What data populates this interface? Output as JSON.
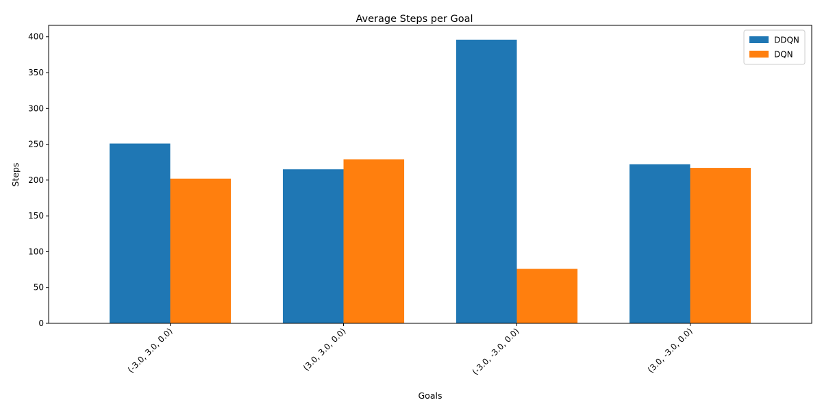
{
  "chart_data": {
    "type": "bar",
    "title": "Average Steps per Goal",
    "xlabel": "Goals",
    "ylabel": "Steps",
    "categories": [
      "(-3.0, 3.0, 0.0)",
      "(3.0, 3.0, 0.0)",
      "(-3.0, -3.0, 0.0)",
      "(3.0, -3.0, 0.0)"
    ],
    "series": [
      {
        "name": "DDQN",
        "color": "#1f77b4",
        "values": [
          251,
          215,
          396,
          222
        ]
      },
      {
        "name": "DQN",
        "color": "#ff7f0e",
        "values": [
          202,
          229,
          76,
          217
        ]
      }
    ],
    "ylim": [
      0,
      416
    ],
    "yticks": [
      0,
      50,
      100,
      150,
      200,
      250,
      300,
      350,
      400
    ],
    "grid": false,
    "legend_position": "top-right",
    "xtick_rotation": 45
  }
}
